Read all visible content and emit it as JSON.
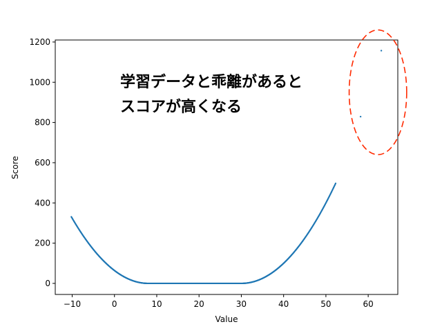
{
  "chart_data": {
    "type": "scatter",
    "title": "",
    "xlabel": "Value",
    "ylabel": "Score",
    "xlim": [
      -14,
      67
    ],
    "ylim": [
      -55,
      1210
    ],
    "xticks": [
      -10,
      0,
      10,
      20,
      30,
      40,
      50,
      60
    ],
    "xtick_labels": [
      "−10",
      "0",
      "10",
      "20",
      "30",
      "40",
      "50",
      "60"
    ],
    "yticks": [
      0,
      200,
      400,
      600,
      800,
      1000,
      1200
    ],
    "ytick_labels": [
      "0",
      "200",
      "400",
      "600",
      "800",
      "1000",
      "1200"
    ],
    "grid": false,
    "marker_color": "#1f77b4",
    "series": [
      {
        "description": "scatter points (dense band)",
        "model": "score = (8 - x)^2 for x < 8; 0 for 8 <= x <= 30; (x - 30)^2 for x > 30",
        "x_range": [
          -10.2,
          52.3
        ],
        "x": [
          -10.2,
          -9.5,
          -8,
          -6,
          -4,
          -2,
          0,
          2,
          4,
          6,
          8,
          10,
          15,
          20,
          25,
          30,
          32,
          34,
          36,
          38,
          40,
          42,
          44,
          46,
          48,
          50,
          52.3
        ],
        "y": [
          395,
          380,
          320,
          270,
          210,
          160,
          110,
          70,
          40,
          12,
          0,
          0,
          0,
          0,
          0,
          0,
          4,
          16,
          36,
          64,
          100,
          144,
          196,
          256,
          324,
          400,
          520
        ]
      },
      {
        "description": "outliers",
        "x": [
          58.2,
          63.1
        ],
        "y": [
          829,
          1157
        ]
      }
    ],
    "annotations": {
      "text_lines": [
        "学習データと乖離があると",
        "スコアが高くなる"
      ],
      "ellipse": {
        "center": [
          62.3,
          950
        ],
        "rx": 6.8,
        "ry": 310,
        "color": "#ff2a00",
        "style": "dashed"
      }
    }
  }
}
